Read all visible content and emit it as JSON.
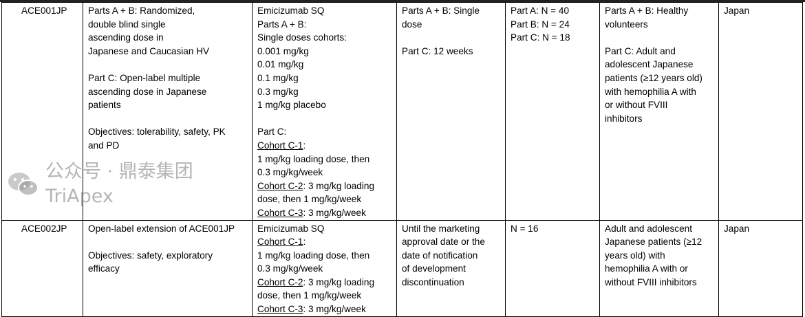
{
  "table": {
    "rows": [
      {
        "cells": [
          [
            "ACE001JP"
          ],
          [
            "Parts A + B: Randomized,",
            "double blind single",
            "ascending dose in",
            "Japanese and Caucasian HV",
            "",
            "Part C: Open-label multiple",
            "ascending dose in Japanese",
            "patients",
            "",
            "Objectives: tolerability, safety, PK",
            "and PD"
          ],
          [
            "Emicizumab SQ",
            "Parts A + B:",
            "Single doses cohorts:",
            "0.001 mg/kg",
            "0.01 mg/kg",
            "0.1 mg/kg",
            "0.3 mg/kg",
            "1 mg/kg placebo",
            "",
            "Part C:",
            {
              "u": "Cohort C-1",
              "t": ":"
            },
            "1 mg/kg loading dose, then",
            "0.3 mg/kg/week",
            {
              "u": "Cohort C-2",
              "t": ": 3 mg/kg loading"
            },
            "dose, then 1 mg/kg/week",
            {
              "u": "Cohort C-3",
              "t": ": 3 mg/kg/week"
            }
          ],
          [
            "Parts A + B: Single",
            "dose",
            "",
            "Part C: 12 weeks"
          ],
          [
            "Part A: N = 40",
            "Part B: N = 24",
            "Part C: N = 18"
          ],
          [
            "Parts A + B: Healthy",
            "volunteers",
            "",
            "Part C: Adult and",
            "adolescent Japanese",
            "patients (≥12 years old)",
            "with hemophilia A with",
            "or without FVIII",
            "inhibitors"
          ],
          [
            "Japan"
          ]
        ]
      },
      {
        "cells": [
          [
            "ACE002JP"
          ],
          [
            "Open-label extension of ACE001JP",
            "",
            "Objectives: safety, exploratory",
            "efficacy"
          ],
          [
            "Emicizumab SQ",
            {
              "u": "Cohort C-1",
              "t": ":"
            },
            "1 mg/kg loading dose, then",
            "0.3 mg/kg/week",
            {
              "u": "Cohort C-2",
              "t": ": 3 mg/kg loading"
            },
            "dose, then 1 mg/kg/week",
            {
              "u": "Cohort C-3",
              "t": ": 3 mg/kg/week"
            }
          ],
          [
            "Until the marketing",
            "approval date or the",
            "date of notification",
            "of development",
            "discontinuation"
          ],
          [
            "N = 16"
          ],
          [
            "Adult and adolescent",
            "Japanese patients (≥12",
            "years old) with",
            "hemophilia A with or",
            "without FVIII inhibitors"
          ],
          [
            "Japan"
          ]
        ]
      }
    ]
  },
  "watermark": {
    "text": "公众号 · 鼎泰集团TriApex",
    "icon": "wechat-icon"
  }
}
